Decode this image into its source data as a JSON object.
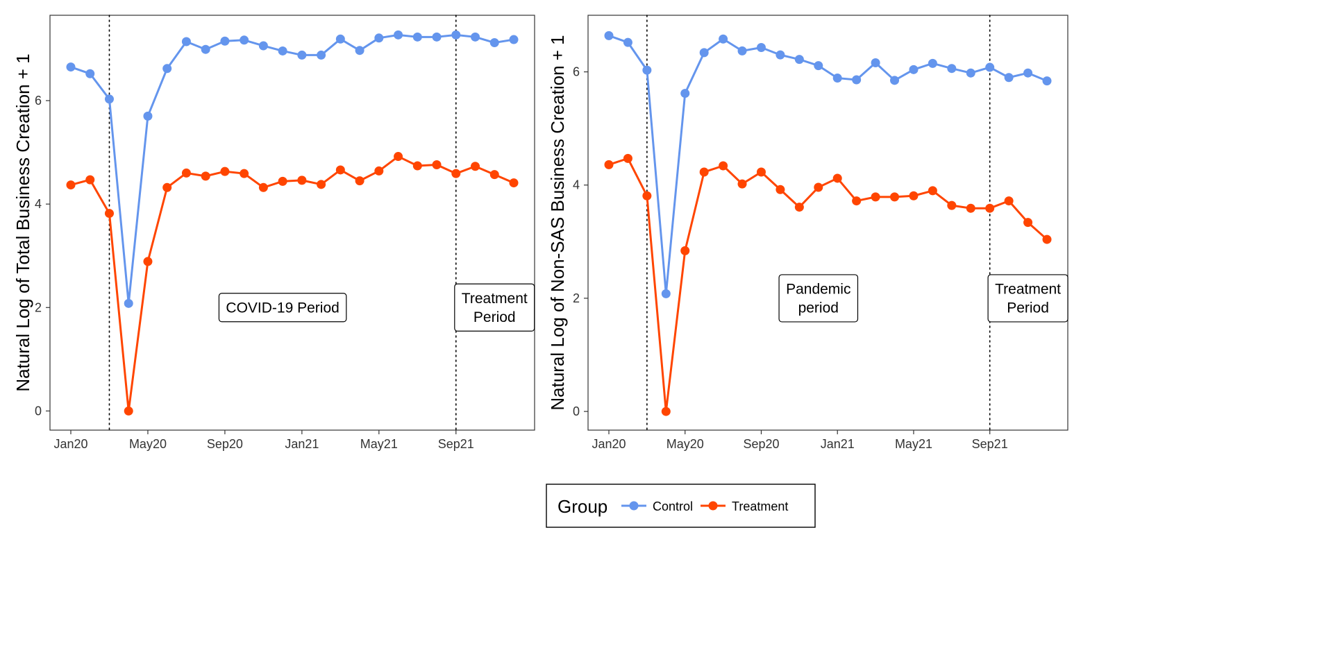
{
  "colors": {
    "control": "#6495ED",
    "treatment": "#FF4500"
  },
  "legend": {
    "title": "Group",
    "items": [
      {
        "label": "Control",
        "color": "#6495ED"
      },
      {
        "label": "Treatment",
        "color": "#FF4500"
      }
    ],
    "placement": "bottom"
  },
  "chart_data": [
    {
      "type": "line",
      "title": "",
      "xlabel": "",
      "ylabel": "Natural Log of Total Business Creation + 1",
      "x": [
        "Jan20",
        "Feb20",
        "Mar20",
        "Apr20",
        "May20",
        "Jun20",
        "Jul20",
        "Aug20",
        "Sep20",
        "Oct20",
        "Nov20",
        "Dec20",
        "Jan21",
        "Feb21",
        "Mar21",
        "Apr21",
        "May21",
        "Jun21",
        "Jul21",
        "Aug21",
        "Sep21",
        "Oct21",
        "Nov21",
        "Dec21"
      ],
      "x_ticks": [
        "Jan20",
        "May20",
        "Sep20",
        "Jan21",
        "May21",
        "Sep21"
      ],
      "y_ticks": [
        "0",
        "2",
        "4",
        "6"
      ],
      "ylim": [
        -0.37,
        7.65
      ],
      "vlines": [
        "Mar20",
        "Sep21"
      ],
      "grid": false,
      "series": [
        {
          "name": "Control",
          "values": [
            6.65,
            6.52,
            6.03,
            2.08,
            5.7,
            6.62,
            7.14,
            6.99,
            7.15,
            7.17,
            7.06,
            6.96,
            6.88,
            6.88,
            7.19,
            6.97,
            7.21,
            7.27,
            7.23,
            7.23,
            7.27,
            7.23,
            7.12,
            7.18
          ]
        },
        {
          "name": "Treatment",
          "values": [
            4.37,
            4.47,
            3.82,
            0.0,
            2.89,
            4.32,
            4.6,
            4.54,
            4.63,
            4.59,
            4.32,
            4.44,
            4.46,
            4.38,
            4.66,
            4.45,
            4.64,
            4.92,
            4.74,
            4.76,
            4.59,
            4.73,
            4.57,
            4.41
          ]
        }
      ],
      "annotations": [
        {
          "lines": [
            "COVID-19 Period"
          ],
          "x": "Dec20",
          "y": 2.0
        },
        {
          "lines": [
            "Treatment",
            "Period"
          ],
          "x": "Nov21",
          "y": 2.0
        }
      ]
    },
    {
      "type": "line",
      "title": "",
      "xlabel": "",
      "ylabel": "Natural Log of Non-SAS Business Creation + 1",
      "x": [
        "Jan20",
        "Feb20",
        "Mar20",
        "Apr20",
        "May20",
        "Jun20",
        "Jul20",
        "Aug20",
        "Sep20",
        "Oct20",
        "Nov20",
        "Dec20",
        "Jan21",
        "Feb21",
        "Mar21",
        "Apr21",
        "May21",
        "Jun21",
        "Jul21",
        "Aug21",
        "Sep21",
        "Oct21",
        "Nov21",
        "Dec21"
      ],
      "x_ticks": [
        "Jan20",
        "May20",
        "Sep20",
        "Jan21",
        "May21",
        "Sep21"
      ],
      "y_ticks": [
        "0",
        "2",
        "4",
        "6"
      ],
      "ylim": [
        -0.33,
        7.0
      ],
      "vlines": [
        "Mar20",
        "Sep21"
      ],
      "grid": false,
      "series": [
        {
          "name": "Control",
          "values": [
            6.64,
            6.52,
            6.03,
            2.08,
            5.62,
            6.34,
            6.58,
            6.37,
            6.43,
            6.3,
            6.22,
            6.11,
            5.89,
            5.86,
            6.16,
            5.85,
            6.04,
            6.15,
            6.06,
            5.98,
            6.08,
            5.9,
            5.98,
            5.84
          ]
        },
        {
          "name": "Treatment",
          "values": [
            4.36,
            4.47,
            3.81,
            0.0,
            2.84,
            4.23,
            4.34,
            4.02,
            4.23,
            3.92,
            3.61,
            3.96,
            4.12,
            3.72,
            3.79,
            3.79,
            3.81,
            3.9,
            3.64,
            3.59,
            3.59,
            3.72,
            3.34,
            3.04
          ]
        }
      ],
      "annotations": [
        {
          "lines": [
            "Pandemic",
            "period"
          ],
          "x": "Dec20",
          "y": 2.0
        },
        {
          "lines": [
            "Treatment",
            "Period"
          ],
          "x": "Nov21",
          "y": 2.0
        }
      ]
    }
  ]
}
